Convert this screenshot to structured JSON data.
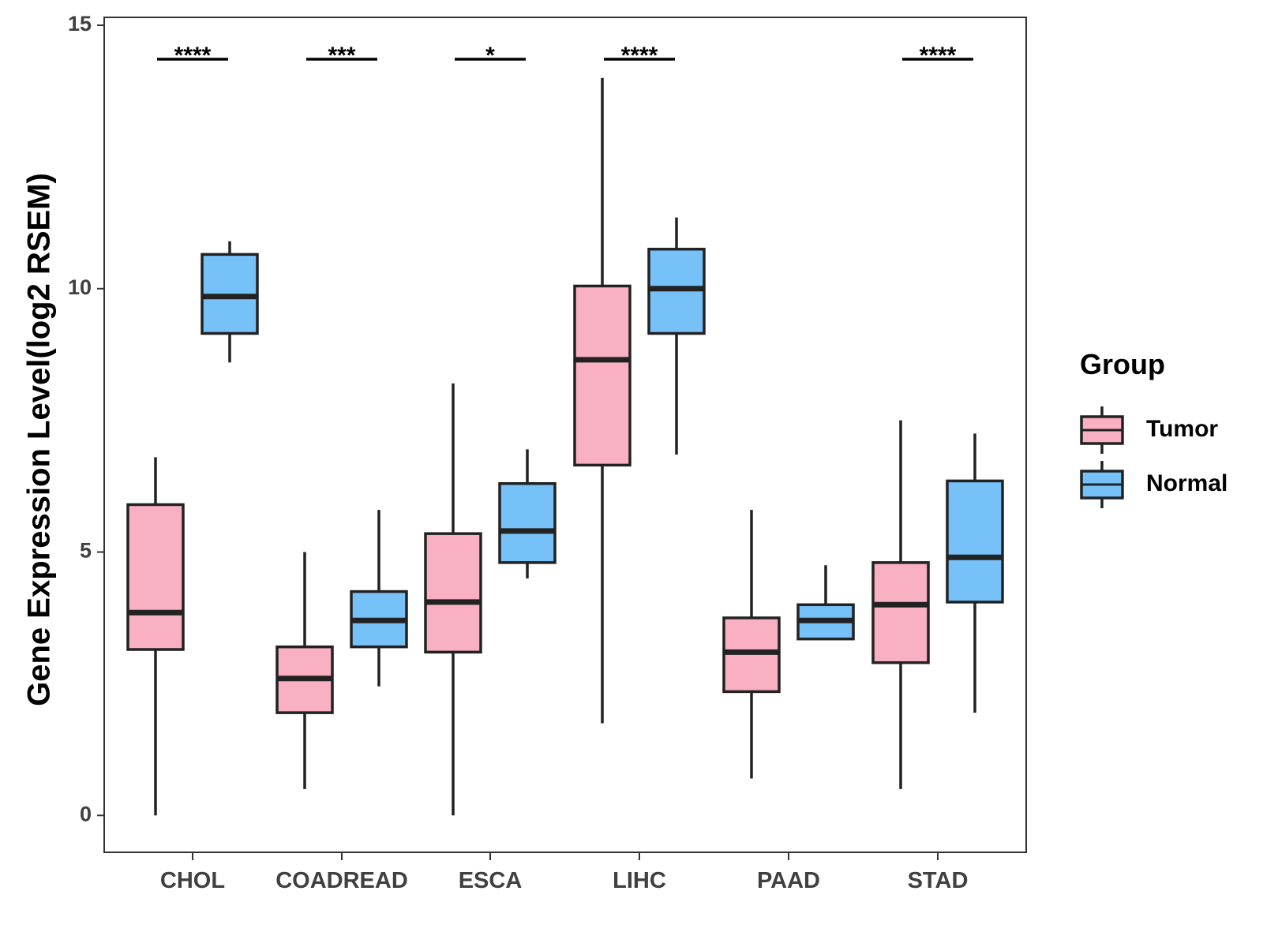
{
  "chart_data": {
    "type": "boxplot",
    "title": "",
    "xlabel": "",
    "ylabel": "Gene Expression Level(log2 RSEM)",
    "ylim": [
      -0.7,
      15.15
    ],
    "yticks": [
      0,
      5,
      10,
      15
    ],
    "ytick_labels": [
      "0",
      "5",
      "10",
      "15"
    ],
    "grid": false,
    "categories": [
      "CHOL",
      "COADREAD",
      "ESCA",
      "LIHC",
      "PAAD",
      "STAD"
    ],
    "legend": {
      "title": "Group",
      "position": "right",
      "entries": [
        "Tumor",
        "Normal"
      ]
    },
    "colors": {
      "Tumor": "#F9B0C3",
      "Normal": "#76C1F8",
      "outline": "#222222"
    },
    "series": [
      {
        "name": "Tumor",
        "boxes": [
          {
            "whisker_low": 0.0,
            "q1": 3.15,
            "median": 3.85,
            "q3": 5.9,
            "whisker_high": 6.8
          },
          {
            "whisker_low": 0.5,
            "q1": 1.95,
            "median": 2.6,
            "q3": 3.2,
            "whisker_high": 5.0
          },
          {
            "whisker_low": 0.0,
            "q1": 3.1,
            "median": 4.05,
            "q3": 5.35,
            "whisker_high": 8.2
          },
          {
            "whisker_low": 1.75,
            "q1": 6.65,
            "median": 8.65,
            "q3": 10.05,
            "whisker_high": 14.0
          },
          {
            "whisker_low": 0.7,
            "q1": 2.35,
            "median": 3.1,
            "q3": 3.75,
            "whisker_high": 5.8
          },
          {
            "whisker_low": 0.5,
            "q1": 2.9,
            "median": 4.0,
            "q3": 4.8,
            "whisker_high": 7.5
          }
        ]
      },
      {
        "name": "Normal",
        "boxes": [
          {
            "whisker_low": 8.6,
            "q1": 9.15,
            "median": 9.85,
            "q3": 10.65,
            "whisker_high": 10.9
          },
          {
            "whisker_low": 2.45,
            "q1": 3.2,
            "median": 3.7,
            "q3": 4.25,
            "whisker_high": 5.8
          },
          {
            "whisker_low": 4.5,
            "q1": 4.8,
            "median": 5.4,
            "q3": 6.3,
            "whisker_high": 6.95
          },
          {
            "whisker_low": 6.85,
            "q1": 9.15,
            "median": 10.0,
            "q3": 10.75,
            "whisker_high": 11.35
          },
          {
            "whisker_low": 3.35,
            "q1": 3.35,
            "median": 3.7,
            "q3": 4.0,
            "whisker_high": 4.75
          },
          {
            "whisker_low": 1.95,
            "q1": 4.05,
            "median": 4.9,
            "q3": 6.35,
            "whisker_high": 7.25
          }
        ]
      }
    ],
    "significance": [
      {
        "category": "CHOL",
        "label": "****"
      },
      {
        "category": "COADREAD",
        "label": "***"
      },
      {
        "category": "ESCA",
        "label": "*"
      },
      {
        "category": "LIHC",
        "label": "****"
      },
      {
        "category": "STAD",
        "label": "****"
      }
    ]
  }
}
